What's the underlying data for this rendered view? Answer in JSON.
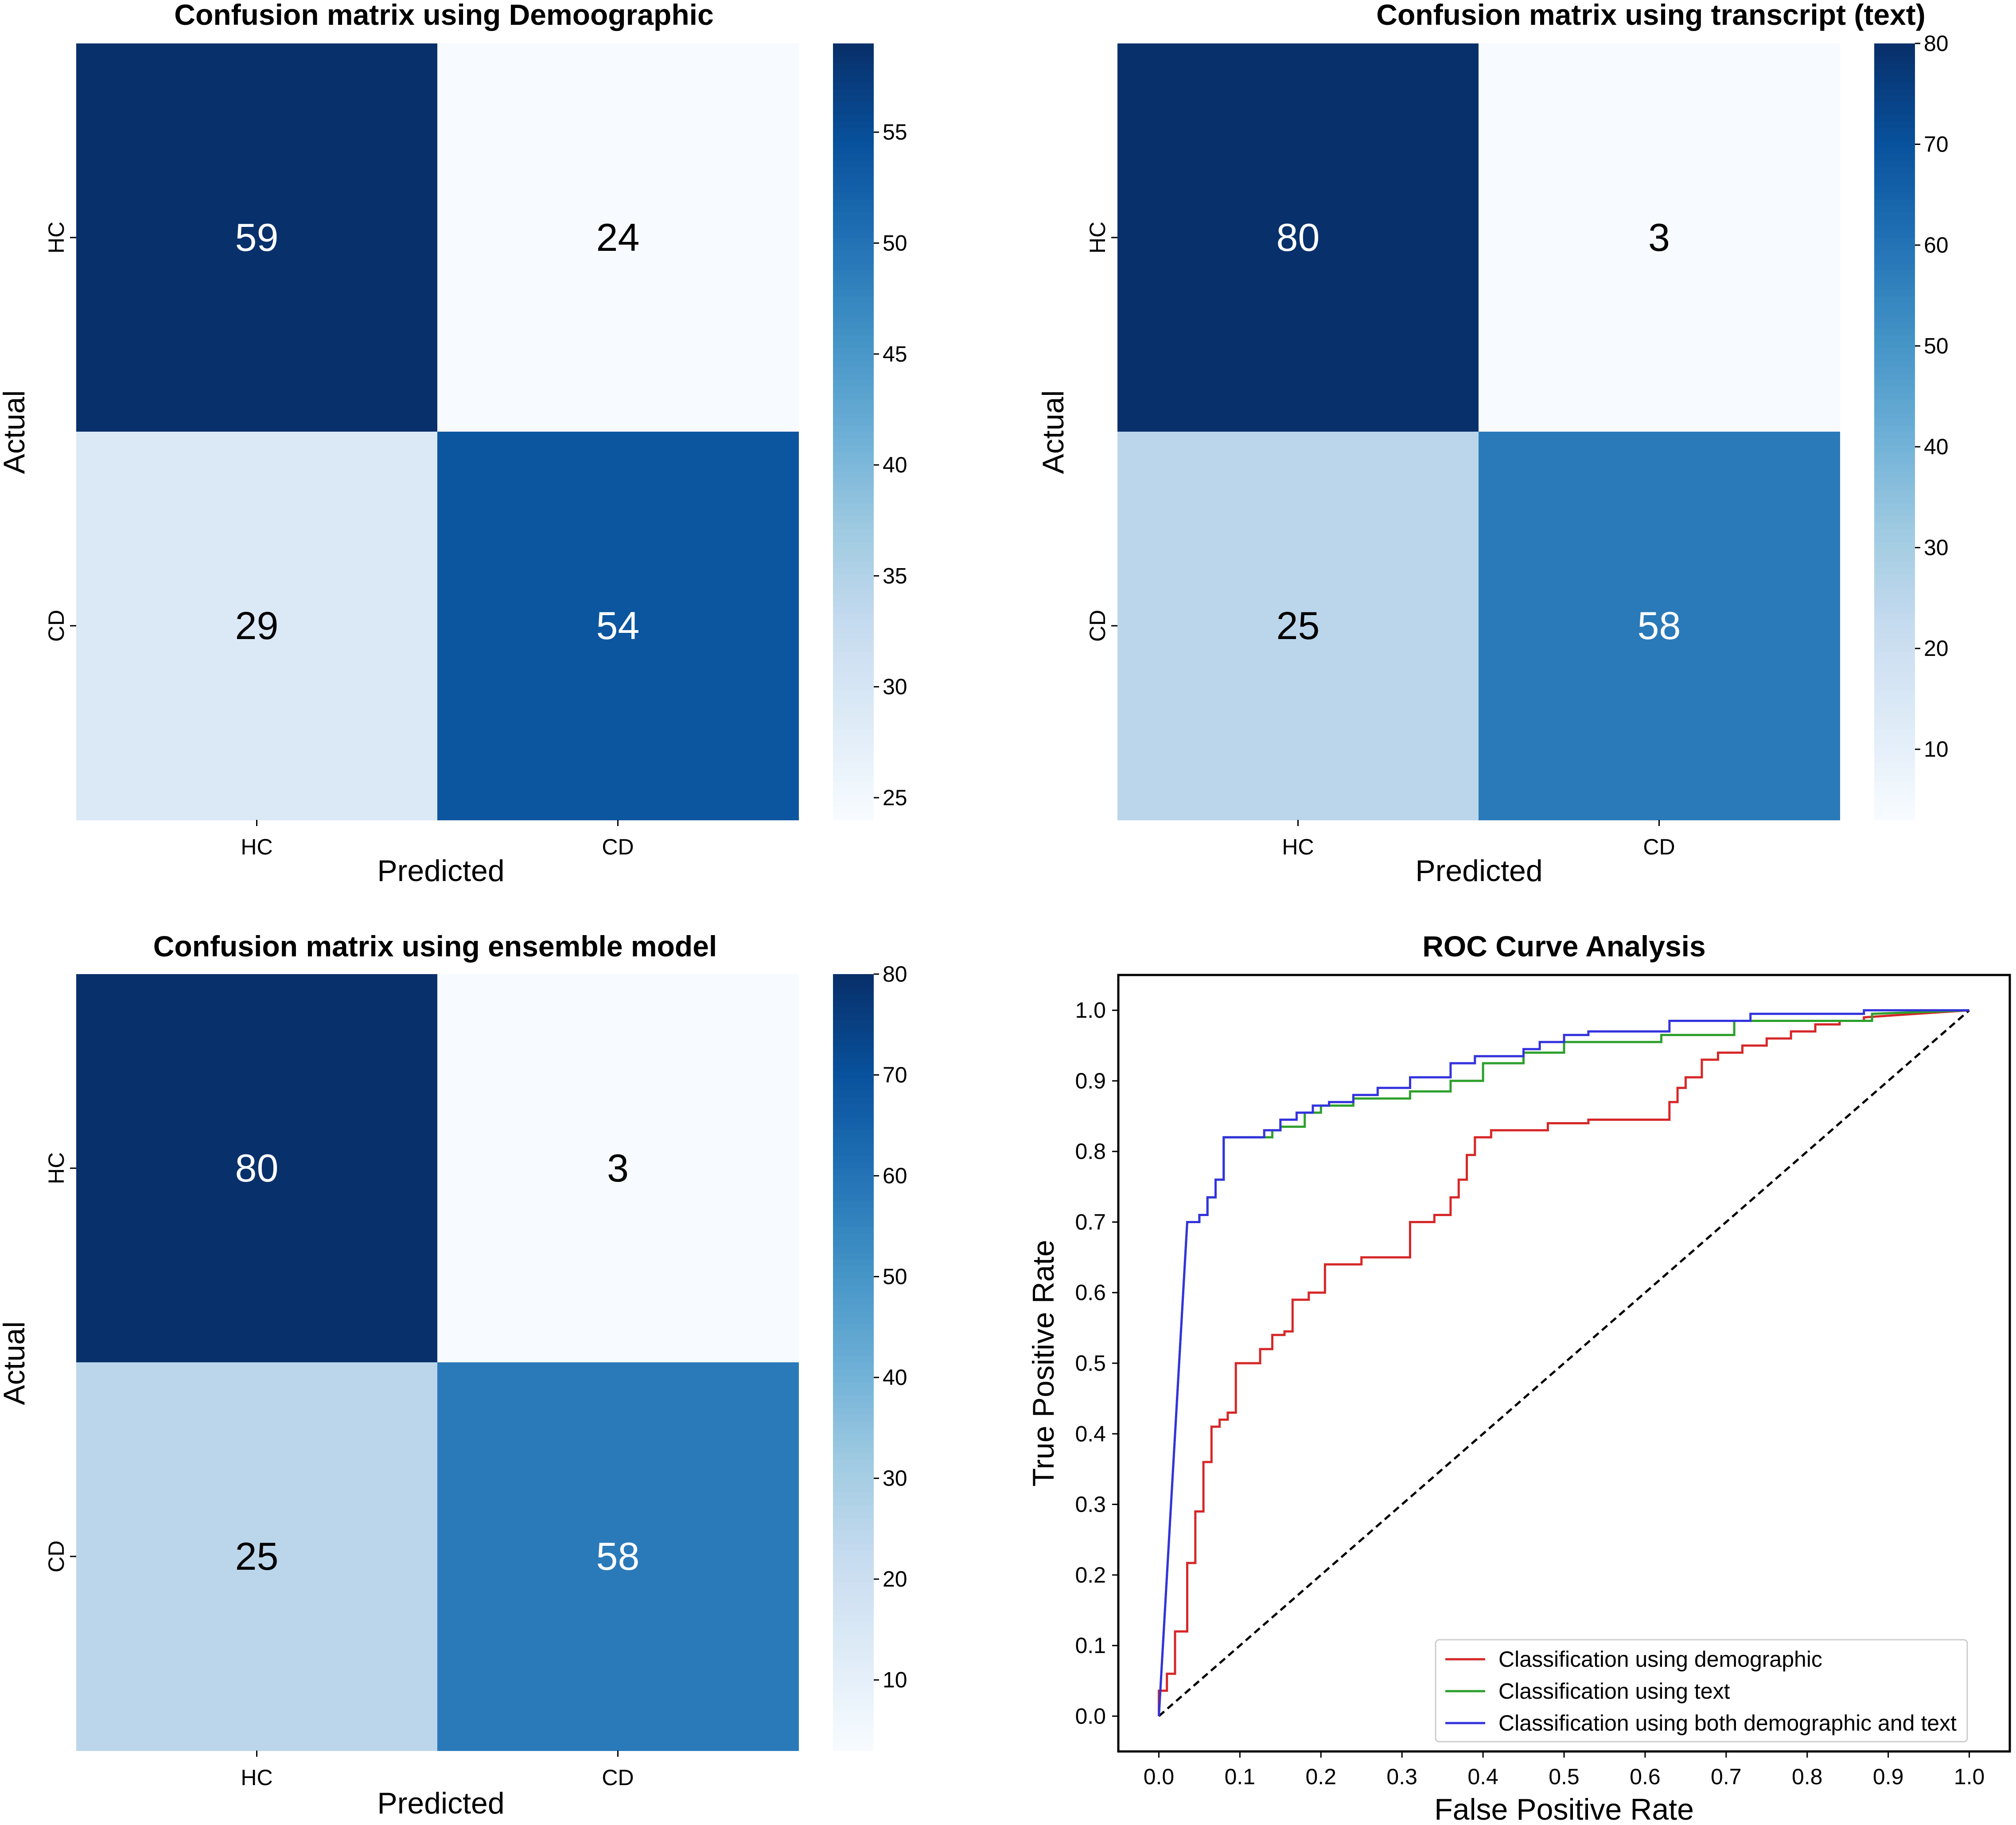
{
  "chart_data": [
    {
      "type": "heatmap",
      "title": "Confusion matrix using Demoographic",
      "xlabel": "Predicted",
      "ylabel": "Actual",
      "row_labels": [
        "HC",
        "CD"
      ],
      "col_labels": [
        "HC",
        "CD"
      ],
      "values": [
        [
          59,
          24
        ],
        [
          29,
          54
        ]
      ],
      "cell_labels": [
        [
          "59",
          "24"
        ],
        [
          "29",
          "54"
        ]
      ],
      "colormap": "Blues",
      "color_range": [
        24,
        59
      ],
      "colorbar_ticks": [
        25,
        30,
        35,
        40,
        45,
        50,
        55
      ],
      "colorbar_tick_labels": [
        "25",
        "30",
        "35",
        "40",
        "45",
        "50",
        "55"
      ]
    },
    {
      "type": "heatmap",
      "title": "Confusion matrix using transcript (text)",
      "xlabel": "Predicted",
      "ylabel": "Actual",
      "row_labels": [
        "HC",
        "CD"
      ],
      "col_labels": [
        "HC",
        "CD"
      ],
      "values": [
        [
          80,
          3
        ],
        [
          25,
          58
        ]
      ],
      "cell_labels": [
        [
          "80",
          "3"
        ],
        [
          "25",
          "58"
        ]
      ],
      "colormap": "Blues",
      "color_range": [
        3,
        80
      ],
      "colorbar_ticks": [
        10,
        20,
        30,
        40,
        50,
        60,
        70,
        80
      ],
      "colorbar_tick_labels": [
        "10",
        "20",
        "30",
        "40",
        "50",
        "60",
        "70",
        "80"
      ]
    },
    {
      "type": "heatmap",
      "title": "Confusion matrix using ensemble model",
      "xlabel": "Predicted",
      "ylabel": "Actual",
      "row_labels": [
        "HC",
        "CD"
      ],
      "col_labels": [
        "HC",
        "CD"
      ],
      "values": [
        [
          80,
          3
        ],
        [
          25,
          58
        ]
      ],
      "cell_labels": [
        [
          "80",
          "3"
        ],
        [
          "25",
          "58"
        ]
      ],
      "colormap": "Blues",
      "color_range": [
        3,
        80
      ],
      "colorbar_ticks": [
        10,
        20,
        30,
        40,
        50,
        60,
        70,
        80
      ],
      "colorbar_tick_labels": [
        "10",
        "20",
        "30",
        "40",
        "50",
        "60",
        "70",
        "80"
      ]
    },
    {
      "type": "line",
      "title": "ROC Curve Analysis",
      "xlabel": "False Positive Rate",
      "ylabel": "True Positive Rate",
      "xlim": [
        -0.05,
        1.05
      ],
      "ylim": [
        -0.05,
        1.05
      ],
      "xticks": [
        0.0,
        0.1,
        0.2,
        0.3,
        0.4,
        0.5,
        0.6,
        0.7,
        0.8,
        0.9,
        1.0
      ],
      "yticks": [
        0.0,
        0.1,
        0.2,
        0.3,
        0.4,
        0.5,
        0.6,
        0.7,
        0.8,
        0.9,
        1.0
      ],
      "xtick_labels": [
        "0.0",
        "0.1",
        "0.2",
        "0.3",
        "0.4",
        "0.5",
        "0.6",
        "0.7",
        "0.8",
        "0.9",
        "1.0"
      ],
      "ytick_labels": [
        "0.0",
        "0.1",
        "0.2",
        "0.3",
        "0.4",
        "0.5",
        "0.6",
        "0.7",
        "0.8",
        "0.9",
        "1.0"
      ],
      "legend_position": "lower-right",
      "series": [
        {
          "name": "Classification using demographic",
          "color": "#d62728",
          "x": [
            0,
            0,
            0.01,
            0.01,
            0.02,
            0.02,
            0.035,
            0.035,
            0.045,
            0.045,
            0.055,
            0.055,
            0.065,
            0.065,
            0.075,
            0.075,
            0.085,
            0.085,
            0.095,
            0.095,
            0.105,
            0.105,
            0.125,
            0.125,
            0.14,
            0.14,
            0.155,
            0.155,
            0.165,
            0.165,
            0.185,
            0.185,
            0.205,
            0.205,
            0.225,
            0.225,
            0.25,
            0.25,
            0.27,
            0.27,
            0.31,
            0.31,
            0.34,
            0.34,
            0.36,
            0.36,
            0.37,
            0.37,
            0.38,
            0.38,
            0.39,
            0.39,
            0.41,
            0.41,
            0.48,
            0.48,
            0.53,
            0.53,
            0.63,
            0.63,
            0.64,
            0.64,
            0.65,
            0.65,
            0.67,
            0.67,
            0.69,
            0.69,
            0.72,
            0.72,
            0.75,
            0.75,
            0.78,
            0.78,
            0.81,
            0.81,
            0.84,
            0.84,
            0.87,
            0.87,
            1.0
          ],
          "y": [
            0,
            0.036,
            0.036,
            0.06,
            0.06,
            0.12,
            0.12,
            0.217,
            0.217,
            0.29,
            0.29,
            0.36,
            0.36,
            0.41,
            0.41,
            0.42,
            0.42,
            0.43,
            0.43,
            0.5,
            0.5,
            0.5,
            0.5,
            0.52,
            0.52,
            0.54,
            0.54,
            0.545,
            0.545,
            0.59,
            0.59,
            0.6,
            0.6,
            0.64,
            0.64,
            0.64,
            0.64,
            0.65,
            0.65,
            0.65,
            0.65,
            0.7,
            0.7,
            0.71,
            0.71,
            0.735,
            0.735,
            0.76,
            0.76,
            0.795,
            0.795,
            0.82,
            0.82,
            0.83,
            0.83,
            0.84,
            0.84,
            0.845,
            0.845,
            0.87,
            0.87,
            0.89,
            0.89,
            0.905,
            0.905,
            0.93,
            0.93,
            0.94,
            0.94,
            0.95,
            0.95,
            0.96,
            0.96,
            0.97,
            0.97,
            0.98,
            0.98,
            0.985,
            0.985,
            0.99,
            1.0
          ]
        },
        {
          "name": "Classification using text",
          "color": "#2ca02c",
          "x": [
            0,
            0.035,
            0.05,
            0.05,
            0.06,
            0.06,
            0.07,
            0.07,
            0.08,
            0.08,
            0.14,
            0.14,
            0.15,
            0.15,
            0.18,
            0.18,
            0.2,
            0.2,
            0.24,
            0.24,
            0.31,
            0.31,
            0.36,
            0.36,
            0.4,
            0.4,
            0.45,
            0.45,
            0.5,
            0.5,
            0.62,
            0.62,
            0.71,
            0.71,
            0.88,
            0.88,
            1.0
          ],
          "y": [
            0,
            0.7,
            0.7,
            0.71,
            0.71,
            0.735,
            0.735,
            0.76,
            0.76,
            0.82,
            0.82,
            0.83,
            0.83,
            0.835,
            0.835,
            0.855,
            0.855,
            0.865,
            0.865,
            0.875,
            0.875,
            0.885,
            0.885,
            0.9,
            0.9,
            0.925,
            0.925,
            0.94,
            0.94,
            0.955,
            0.955,
            0.965,
            0.965,
            0.985,
            0.985,
            0.995,
            1.0
          ]
        },
        {
          "name": "Classification using both demographic and text",
          "color": "#3333dd",
          "x": [
            0,
            0.035,
            0.05,
            0.05,
            0.06,
            0.06,
            0.07,
            0.07,
            0.08,
            0.08,
            0.13,
            0.13,
            0.15,
            0.15,
            0.17,
            0.17,
            0.19,
            0.19,
            0.21,
            0.21,
            0.24,
            0.24,
            0.27,
            0.27,
            0.31,
            0.31,
            0.36,
            0.36,
            0.39,
            0.39,
            0.45,
            0.45,
            0.47,
            0.47,
            0.5,
            0.5,
            0.53,
            0.53,
            0.63,
            0.63,
            0.73,
            0.73,
            0.87,
            0.87,
            1.0
          ],
          "y": [
            0,
            0.7,
            0.7,
            0.71,
            0.71,
            0.735,
            0.735,
            0.76,
            0.76,
            0.82,
            0.82,
            0.83,
            0.83,
            0.845,
            0.845,
            0.855,
            0.855,
            0.865,
            0.865,
            0.87,
            0.87,
            0.88,
            0.88,
            0.89,
            0.89,
            0.905,
            0.905,
            0.925,
            0.925,
            0.935,
            0.935,
            0.945,
            0.945,
            0.955,
            0.955,
            0.965,
            0.965,
            0.97,
            0.97,
            0.985,
            0.985,
            0.995,
            0.995,
            1.0,
            1.0
          ]
        }
      ],
      "reference_line": {
        "x": [
          0,
          1
        ],
        "y": [
          0,
          1
        ],
        "style": "dashed",
        "color": "#000000"
      }
    }
  ]
}
